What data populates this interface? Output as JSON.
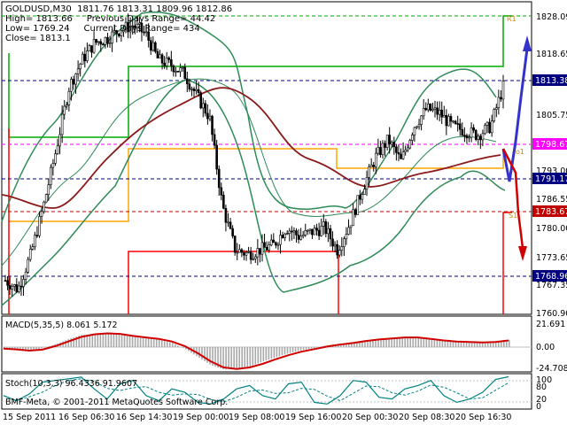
{
  "main_header": {
    "title": "GOLDUSD,M30  1811.76 1813.31 1809.96 1812.86",
    "line2": "High= 1813.66     Previous Days Range= 44.42",
    "line3": "Low= 1769.24     Current Days Range= 434",
    "line4": "Close= 1813.1"
  },
  "price_axis": {
    "ticks": [
      "1828.09",
      "1818.65",
      "1805.75",
      "1793.00",
      "1786.55",
      "1780.00",
      "1773.65",
      "1767.35",
      "1760.90"
    ],
    "tags": [
      {
        "text": "1813.38",
        "fill": "#000080",
        "color": "#ffffff"
      },
      {
        "text": "1798.67",
        "fill": "#ff00ff",
        "color": "#ffffff"
      },
      {
        "text": "1791.17",
        "fill": "#000080",
        "color": "#ffffff"
      },
      {
        "text": "1783.67",
        "fill": "#c00000",
        "color": "#ffffff"
      },
      {
        "text": "1768.96",
        "fill": "#000080",
        "color": "#ffffff"
      }
    ],
    "marker_o": "o1",
    "marker_r1": "R1",
    "marker_s1": "S1"
  },
  "macd_panel": {
    "label": "MACD(5,35,5) 8.061 5.172",
    "ticks": [
      "21.691",
      "0.00",
      "-24.708"
    ]
  },
  "stoch_panel": {
    "label": "Stoch(10,3,3) 96.4336 91.9607",
    "ticks": [
      "100",
      "80",
      "20",
      "0"
    ]
  },
  "copyright": "BMF-Meta, © 2001-2011 MetaQuotes Software Corp.",
  "time_axis": {
    "labels": [
      "15 Sep 2011",
      "16 Sep 06:30",
      "16 Sep 14:30",
      "19 Sep 00:00",
      "19 Sep 08:00",
      "19 Sep 16:00",
      "20 Sep 00:30",
      "20 Sep 08:30",
      "20 Sep 16:30"
    ]
  },
  "chart_data": {
    "type": "candlestick",
    "symbol": "GOLDUSD",
    "timeframe": "M30",
    "ylim": [
      1760.9,
      1828.09
    ],
    "close_path": [
      1768,
      1766,
      1774,
      1785,
      1798,
      1812,
      1818,
      1822,
      1823,
      1825,
      1826,
      1824,
      1818,
      1817,
      1815,
      1810,
      1805,
      1785,
      1775,
      1774,
      1775,
      1776,
      1780,
      1778,
      1779,
      1780,
      1775,
      1781,
      1789,
      1796,
      1800,
      1795,
      1803,
      1807,
      1806,
      1803,
      1802,
      1801,
      1803,
      1812
    ],
    "macd_path": [
      -1.5,
      -3,
      -4,
      -1,
      3,
      8,
      12,
      13,
      14,
      12,
      10,
      9,
      7,
      4,
      -2,
      -10,
      -18,
      -22,
      -21,
      -19,
      -14,
      -10,
      -6,
      -3,
      -1,
      2,
      3,
      5,
      7,
      8,
      9,
      10,
      9,
      7,
      6,
      5,
      5,
      4,
      6,
      7
    ],
    "stoch_path": [
      40,
      25,
      45,
      80,
      85,
      90,
      95,
      60,
      30,
      75,
      85,
      40,
      25,
      60,
      50,
      20,
      15,
      30,
      60,
      70,
      40,
      30,
      75,
      80,
      20,
      15,
      40,
      85,
      80,
      35,
      30,
      60,
      70,
      85,
      40,
      20,
      30,
      50,
      88,
      96
    ]
  }
}
